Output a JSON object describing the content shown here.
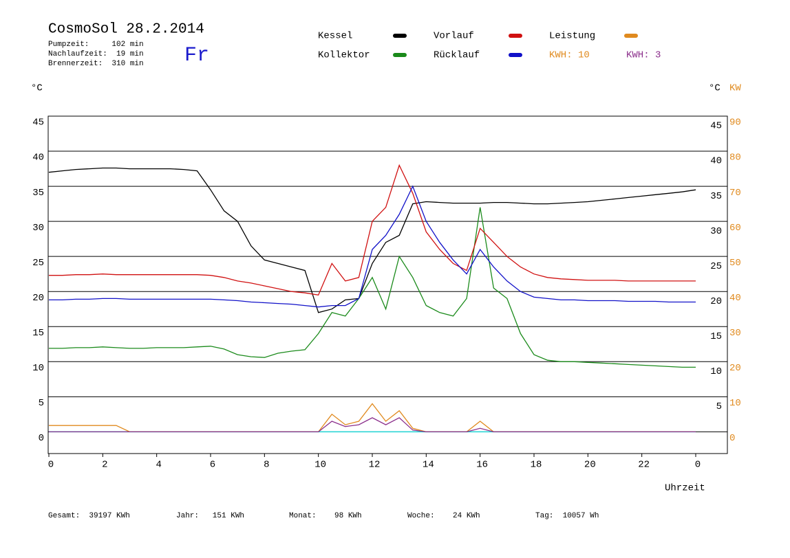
{
  "chart_data": {
    "type": "line",
    "title": "CosmoSol 28.2.2014",
    "info": [
      "Pumpzeit:     102 min",
      "Nachlaufzeit:  19 min",
      "Brennerzeit:  310 min"
    ],
    "weekday": "Fr",
    "kwh_labels": [
      {
        "text": "KWH: 10",
        "color": "#e08a1e"
      },
      {
        "text": "KWH: 3",
        "color": "#8b2e8b"
      }
    ],
    "y_unit": "°C",
    "y2_units": [
      "°C",
      "KW"
    ],
    "xlabel": "Uhrzeit",
    "footer": [
      "Gesamt:  39197 KWh",
      "Jahr:   151 KWh",
      "Monat:    98 KWh",
      "Woche:    24 KWh",
      "Tag:  10057 Wh"
    ],
    "x": [
      0,
      0.5,
      1,
      1.5,
      2,
      2.5,
      3,
      3.5,
      4,
      4.5,
      5,
      5.5,
      6,
      6.5,
      7,
      7.5,
      8,
      8.5,
      9,
      9.5,
      10,
      10.5,
      11,
      11.5,
      12,
      12.5,
      13,
      13.5,
      14,
      14.5,
      15,
      15.5,
      16,
      16.5,
      17,
      17.5,
      18,
      18.5,
      19,
      19.5,
      20,
      20.5,
      21,
      21.5,
      22,
      22.5,
      23,
      23.5,
      24
    ],
    "series": [
      {
        "name": "Kessel",
        "color": "#000000",
        "values": [
          37,
          37.2,
          37.4,
          37.5,
          37.6,
          37.6,
          37.5,
          37.5,
          37.5,
          37.5,
          37.4,
          37.2,
          34.5,
          31.5,
          30,
          26.5,
          24.5,
          24,
          23.5,
          23,
          17,
          17.5,
          18.8,
          19,
          24,
          27,
          28,
          32.5,
          32.8,
          32.7,
          32.6,
          32.6,
          32.6,
          32.7,
          32.7,
          32.6,
          32.5,
          32.5,
          32.6,
          32.7,
          32.8,
          33,
          33.2,
          33.4,
          33.6,
          33.8,
          34,
          34.2,
          34.5
        ]
      },
      {
        "name": "Kollektor",
        "color": "#1a8a1a",
        "values": [
          11.9,
          11.9,
          12,
          12,
          12.1,
          12,
          11.9,
          11.9,
          12,
          12,
          12,
          12.1,
          12.2,
          11.8,
          11,
          10.7,
          10.6,
          11.2,
          11.5,
          11.7,
          14,
          17,
          16.5,
          19,
          22,
          17.5,
          25,
          22,
          18,
          17,
          16.5,
          19,
          32,
          20.5,
          19,
          14,
          11,
          10.2,
          10,
          10,
          9.9,
          9.8,
          9.7,
          9.6,
          9.5,
          9.4,
          9.3,
          9.2,
          9.2
        ]
      },
      {
        "name": "Vorlauf",
        "color": "#d01010",
        "values": [
          22.3,
          22.3,
          22.4,
          22.4,
          22.5,
          22.4,
          22.4,
          22.4,
          22.4,
          22.4,
          22.4,
          22.4,
          22.3,
          22,
          21.5,
          21.2,
          20.8,
          20.4,
          20,
          19.8,
          19.5,
          24,
          21.5,
          22,
          30,
          32,
          38,
          34,
          28.5,
          26,
          24,
          23,
          29,
          27,
          25,
          23.5,
          22.5,
          22,
          21.8,
          21.7,
          21.6,
          21.6,
          21.6,
          21.5,
          21.5,
          21.5,
          21.5,
          21.5,
          21.5
        ]
      },
      {
        "name": "Rücklauf",
        "color": "#1010c8",
        "values": [
          18.8,
          18.8,
          18.9,
          18.9,
          19,
          19,
          18.9,
          18.9,
          18.9,
          18.9,
          18.9,
          18.9,
          18.9,
          18.8,
          18.7,
          18.5,
          18.4,
          18.3,
          18.2,
          18,
          17.8,
          18,
          18,
          19,
          26,
          28,
          31,
          35,
          30,
          27,
          24.5,
          22.5,
          26,
          23.5,
          21.5,
          20,
          19.2,
          19,
          18.8,
          18.8,
          18.7,
          18.7,
          18.7,
          18.6,
          18.6,
          18.6,
          18.5,
          18.5,
          18.5
        ]
      },
      {
        "name": "Leistung",
        "color": "#e08a1e",
        "axis": "y2",
        "values": [
          1.8,
          1.8,
          1.8,
          1.8,
          1.8,
          1.8,
          0,
          0,
          0,
          0,
          0,
          0,
          0,
          0,
          0,
          0,
          0,
          0,
          0,
          0,
          0,
          5,
          2,
          3,
          8,
          3,
          6,
          1,
          0,
          0,
          0,
          0,
          3,
          0,
          0,
          0,
          0,
          0,
          0,
          0,
          0,
          0,
          0,
          0,
          0,
          0,
          0,
          0,
          0
        ]
      },
      {
        "color": "#8b2e8b",
        "axis": "y2",
        "values": [
          0,
          0,
          0,
          0,
          0,
          0,
          0,
          0,
          0,
          0,
          0,
          0,
          0,
          0,
          0,
          0,
          0,
          0,
          0,
          0,
          0,
          3,
          1.5,
          2,
          4,
          2,
          4,
          0.5,
          0,
          0,
          0,
          0,
          1,
          0,
          0,
          0,
          0,
          0,
          0,
          0,
          0,
          0,
          0,
          0,
          0,
          0,
          0,
          0,
          0
        ]
      }
    ],
    "xlim": [
      0,
      25.2
    ],
    "xticks": [
      0,
      2,
      4,
      6,
      8,
      10,
      12,
      14,
      16,
      18,
      20,
      22,
      {
        "value": 24,
        "label": "0"
      }
    ],
    "ylim": [
      -3.1,
      45
    ],
    "yticks": [
      0,
      5,
      10,
      15,
      20,
      25,
      30,
      35,
      40,
      45
    ],
    "yticks_right": [
      5,
      10,
      15,
      20,
      25,
      30,
      35,
      40,
      45
    ],
    "y2lim": [
      -6.2,
      90
    ],
    "y2ticks": [
      0,
      10,
      20,
      30,
      40,
      50,
      60,
      70,
      80,
      90
    ],
    "zero_line_color": "#22d8d8",
    "grid": true
  }
}
